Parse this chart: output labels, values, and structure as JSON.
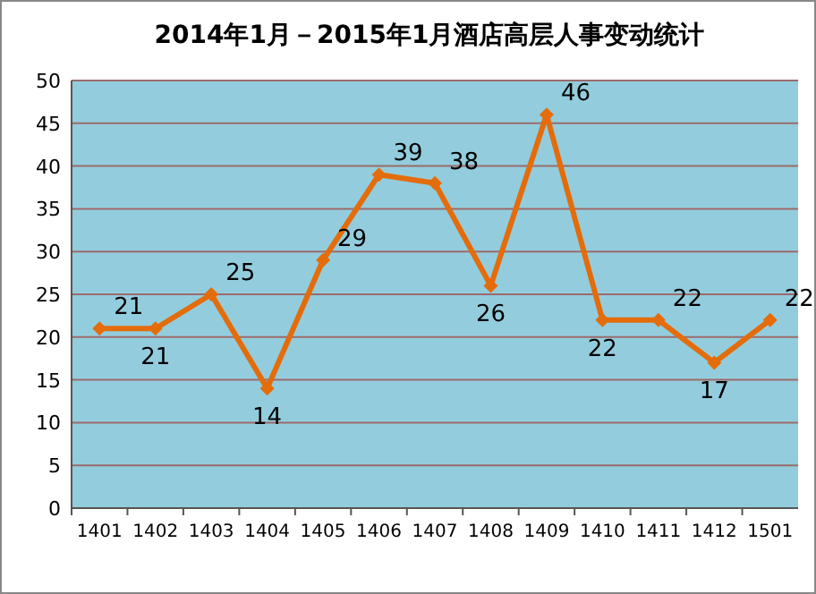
{
  "chart_data": {
    "type": "line",
    "title": "2014年1月－2015年1月酒店高层人事变动统计",
    "categories": [
      "1401",
      "1402",
      "1403",
      "1404",
      "1405",
      "1406",
      "1407",
      "1408",
      "1409",
      "1410",
      "1411",
      "1412",
      "1501"
    ],
    "series": [
      {
        "color": "#e46c0a",
        "values": [
          21,
          21,
          25,
          14,
          29,
          39,
          38,
          26,
          46,
          22,
          22,
          17,
          22
        ]
      }
    ],
    "ylim": [
      0,
      50
    ],
    "yticks": [
      0,
      5,
      10,
      15,
      20,
      25,
      30,
      35,
      40,
      45,
      50
    ],
    "grid": "y",
    "marker": "diamond",
    "data_labels": true
  }
}
